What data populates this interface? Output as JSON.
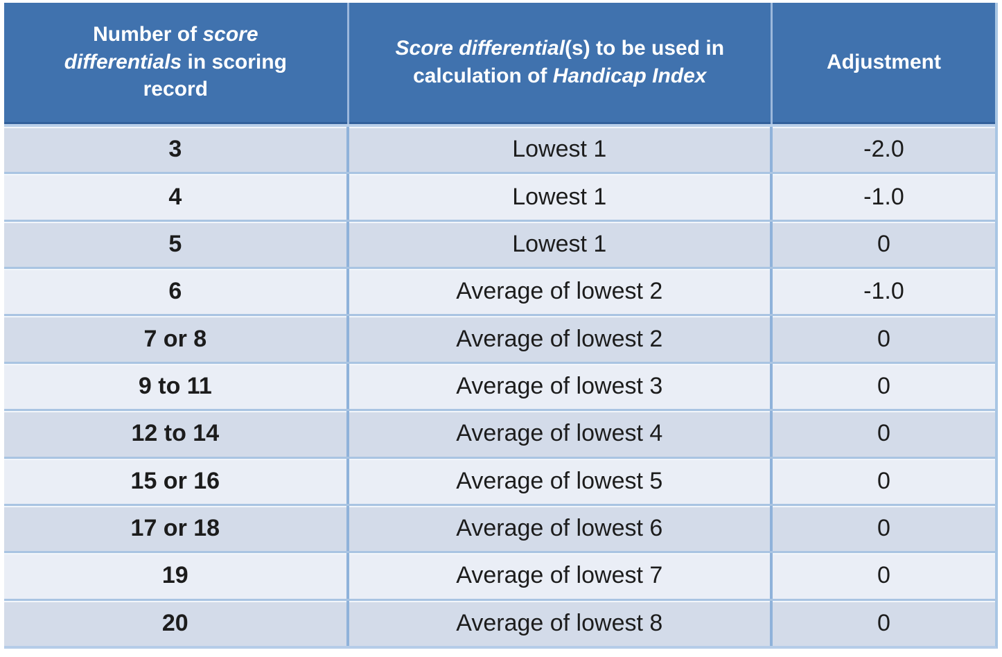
{
  "colors": {
    "page_bg": "#ffffff",
    "header_bg": "#4072ae",
    "header_text": "#ffffff",
    "row_dark": "#d3dbe9",
    "row_light": "#eaeef6",
    "grid_line": "#8fb2da",
    "row_separator": "#a9c4e2",
    "body_text": "#1c1c1c"
  },
  "chart_data": {
    "type": "table",
    "title": "Handicap Index calculation — score differentials used and adjustment",
    "columns": [
      "Number of score differentials in scoring record",
      "Score differential(s) to be used in calculation of Handicap Index",
      "Adjustment"
    ],
    "header_segments": [
      [
        {
          "text": "Number of ",
          "italic": false
        },
        {
          "text": "score differentials",
          "italic": true
        },
        {
          "text": " in scoring record",
          "italic": false
        }
      ],
      [
        {
          "text": "Score differential",
          "italic": true
        },
        {
          "text": "(s) to be used in calculation of ",
          "italic": false
        },
        {
          "text": "Handicap Index",
          "italic": true
        }
      ],
      [
        {
          "text": "Adjustment",
          "italic": false
        }
      ]
    ],
    "rows": [
      [
        "3",
        "Lowest 1",
        "-2.0"
      ],
      [
        "4",
        "Lowest 1",
        "-1.0"
      ],
      [
        "5",
        "Lowest 1",
        "0"
      ],
      [
        "6",
        "Average of lowest 2",
        "-1.0"
      ],
      [
        "7 or 8",
        "Average of lowest 2",
        "0"
      ],
      [
        "9 to 11",
        "Average of lowest 3",
        "0"
      ],
      [
        "12 to 14",
        "Average of lowest 4",
        "0"
      ],
      [
        "15 or 16",
        "Average of lowest 5",
        "0"
      ],
      [
        "17 or 18",
        "Average of lowest 6",
        "0"
      ],
      [
        "19",
        "Average of lowest 7",
        "0"
      ],
      [
        "20",
        "Average of lowest 8",
        "0"
      ]
    ],
    "layout": {
      "striped": true,
      "stripe_pattern": "odd-rows-dark",
      "column_width_fractions": [
        0.348,
        0.4275,
        0.2245
      ]
    }
  }
}
